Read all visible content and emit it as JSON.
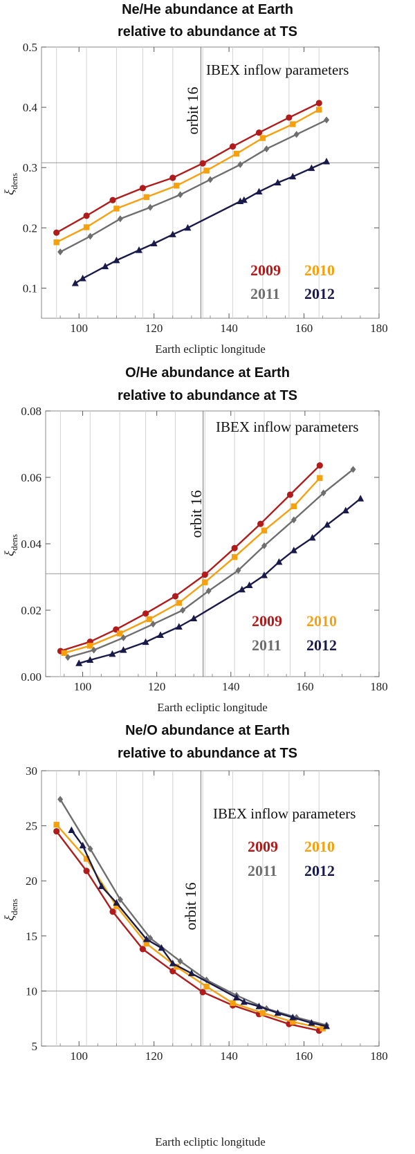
{
  "chart_data": [
    {
      "type": "line",
      "title_lines": [
        "Ne/He abundance at Earth",
        "relative to abundance at TS"
      ],
      "xlabel": "Earth ecliptic longitude",
      "ylabel_main": "ξ",
      "ylabel_sub": "dens",
      "xlim": [
        90,
        180
      ],
      "ylim": [
        0.05,
        0.5
      ],
      "x_ticks": [
        100,
        120,
        140,
        160,
        180
      ],
      "y_ticks": [
        0.1,
        0.2,
        0.3,
        0.4,
        0.5
      ],
      "y_tick_labels": [
        "0.1",
        "0.2",
        "0.3",
        "0.4",
        "0.5"
      ],
      "vgrid_x": [
        94,
        102,
        110,
        117,
        125,
        133,
        141,
        149,
        156,
        164
      ],
      "hline_y": 0.308,
      "orbit_x": 132.5,
      "orbit_label": "orbit 16",
      "annotation": "IBEX inflow parameters",
      "legend": [
        {
          "label": "2009",
          "color": "#b01c1c"
        },
        {
          "label": "2010",
          "color": "#f5a00f"
        },
        {
          "label": "2011",
          "color": "#6e6e6e"
        },
        {
          "label": "2012",
          "color": "#1a1a4a"
        }
      ],
      "series": [
        {
          "name": "2009",
          "color": "#b01c1c",
          "marker": "circle",
          "x": [
            94,
            102,
            109,
            117,
            125,
            133,
            141,
            148,
            156,
            164
          ],
          "y": [
            0.192,
            0.22,
            0.246,
            0.266,
            0.283,
            0.307,
            0.335,
            0.358,
            0.383,
            0.407
          ]
        },
        {
          "name": "2010",
          "color": "#f5a00f",
          "marker": "square",
          "x": [
            94,
            102,
            110,
            118,
            126,
            134,
            142,
            149,
            157,
            164
          ],
          "y": [
            0.176,
            0.201,
            0.232,
            0.251,
            0.27,
            0.295,
            0.323,
            0.349,
            0.372,
            0.396
          ]
        },
        {
          "name": "2011",
          "color": "#6e6e6e",
          "marker": "diamond",
          "x": [
            95,
            103,
            111,
            119,
            127,
            135,
            143,
            150,
            158,
            166
          ],
          "y": [
            0.16,
            0.186,
            0.215,
            0.234,
            0.255,
            0.28,
            0.305,
            0.331,
            0.355,
            0.379
          ]
        },
        {
          "name": "2012",
          "color": "#1a1a4a",
          "marker": "triangle",
          "x": [
            99,
            101,
            107,
            110,
            116,
            120,
            125,
            129,
            143,
            144,
            148,
            153,
            157,
            162,
            166
          ],
          "y": [
            0.108,
            0.116,
            0.136,
            0.146,
            0.163,
            0.174,
            0.189,
            0.2,
            0.244,
            0.246,
            0.26,
            0.275,
            0.285,
            0.299,
            0.31
          ]
        }
      ]
    },
    {
      "type": "line",
      "title_lines": [
        "O/He abundance at Earth",
        "relative to abundance at TS"
      ],
      "xlabel": "Earth ecliptic longitude",
      "ylabel_main": "ξ",
      "ylabel_sub": "dens",
      "xlim": [
        90,
        180
      ],
      "ylim": [
        0,
        0.08
      ],
      "x_ticks": [
        100,
        120,
        140,
        160,
        180
      ],
      "y_ticks": [
        0,
        0.02,
        0.04,
        0.06,
        0.08
      ],
      "y_tick_labels": [
        "0.00",
        "0.02",
        "0.04",
        "0.06",
        "0.08"
      ],
      "vgrid_x": [
        94,
        102,
        110,
        117,
        125,
        133,
        141,
        149,
        156,
        164
      ],
      "hline_y": 0.031,
      "orbit_x": 132.5,
      "orbit_label": "orbit 16",
      "annotation": "IBEX inflow parameters",
      "legend": [
        {
          "label": "2009",
          "color": "#b01c1c"
        },
        {
          "label": "2010",
          "color": "#f5a00f"
        },
        {
          "label": "2011",
          "color": "#6e6e6e"
        },
        {
          "label": "2012",
          "color": "#1a1a4a"
        }
      ],
      "series": [
        {
          "name": "2009",
          "color": "#b01c1c",
          "marker": "circle",
          "x": [
            94,
            102,
            109,
            117,
            125,
            133,
            141,
            148,
            156,
            164
          ],
          "y": [
            0.0077,
            0.0105,
            0.0142,
            0.019,
            0.0242,
            0.0307,
            0.0387,
            0.046,
            0.0548,
            0.0636
          ]
        },
        {
          "name": "2010",
          "color": "#f5a00f",
          "marker": "square",
          "x": [
            95,
            102,
            110,
            118,
            126,
            133,
            141,
            149,
            157,
            164
          ],
          "y": [
            0.0071,
            0.0093,
            0.013,
            0.0173,
            0.0222,
            0.0284,
            0.036,
            0.044,
            0.0513,
            0.0598
          ]
        },
        {
          "name": "2011",
          "color": "#6e6e6e",
          "marker": "diamond",
          "x": [
            96,
            103,
            111,
            119,
            127,
            134,
            142,
            149,
            157,
            165,
            173
          ],
          "y": [
            0.0058,
            0.008,
            0.0117,
            0.0158,
            0.02,
            0.0258,
            0.032,
            0.0394,
            0.0472,
            0.0553,
            0.0624
          ]
        },
        {
          "name": "2012",
          "color": "#1a1a4a",
          "marker": "triangle",
          "x": [
            99,
            102,
            108,
            111,
            117,
            121,
            126,
            130,
            143,
            145,
            149,
            153,
            157,
            162,
            166,
            171,
            175
          ],
          "y": [
            0.004,
            0.005,
            0.0068,
            0.008,
            0.0104,
            0.0125,
            0.015,
            0.0175,
            0.0262,
            0.0275,
            0.0305,
            0.0345,
            0.038,
            0.0418,
            0.0457,
            0.05,
            0.0536
          ]
        }
      ]
    },
    {
      "type": "line",
      "title_lines": [
        "Ne/O abundance at Earth",
        "relative to abundance at TS"
      ],
      "xlabel": "Earth ecliptic longitude",
      "ylabel_main": "ξ",
      "ylabel_sub": "dens",
      "xlim": [
        90,
        180
      ],
      "ylim": [
        5,
        30
      ],
      "x_ticks": [
        100,
        120,
        140,
        160,
        180
      ],
      "y_ticks": [
        5,
        10,
        15,
        20,
        25,
        30
      ],
      "y_tick_labels": [
        "5",
        "10",
        "15",
        "20",
        "25",
        "30"
      ],
      "vgrid_x": [
        94,
        102,
        110,
        117,
        125,
        133,
        141,
        149,
        156,
        164
      ],
      "hline_y": 10,
      "orbit_x": 132.5,
      "orbit_label": "orbit 16",
      "annotation": "IBEX inflow parameters",
      "legend": [
        {
          "label": "2009",
          "color": "#b01c1c"
        },
        {
          "label": "2010",
          "color": "#f5a00f"
        },
        {
          "label": "2011",
          "color": "#6e6e6e"
        },
        {
          "label": "2012",
          "color": "#1a1a4a"
        }
      ],
      "series": [
        {
          "name": "2009",
          "color": "#b01c1c",
          "marker": "circle",
          "x": [
            94,
            102,
            109,
            117,
            125,
            133,
            141,
            148,
            156,
            164
          ],
          "y": [
            24.5,
            20.9,
            17.2,
            13.8,
            11.8,
            9.9,
            8.7,
            7.9,
            7.0,
            6.4
          ]
        },
        {
          "name": "2010",
          "color": "#f5a00f",
          "marker": "square",
          "x": [
            94,
            102,
            110,
            118,
            126,
            134,
            141,
            149,
            157,
            165
          ],
          "y": [
            25.1,
            22.0,
            17.7,
            14.3,
            12.2,
            10.4,
            8.9,
            8.0,
            7.2,
            6.6
          ]
        },
        {
          "name": "2011",
          "color": "#6e6e6e",
          "marker": "diamond",
          "x": [
            95,
            103,
            111,
            119,
            127,
            134,
            142,
            150,
            158,
            166
          ],
          "y": [
            27.4,
            22.9,
            18.3,
            14.8,
            12.7,
            11.0,
            9.6,
            8.4,
            7.6,
            6.9
          ]
        },
        {
          "name": "2012",
          "color": "#1a1a4a",
          "marker": "triangle",
          "x": [
            98,
            101,
            106,
            110,
            118,
            122,
            125,
            130,
            142,
            144,
            148,
            153,
            157,
            162,
            166
          ],
          "y": [
            24.6,
            23.2,
            19.5,
            18.0,
            14.7,
            13.9,
            12.5,
            11.6,
            9.4,
            9.0,
            8.6,
            8.0,
            7.6,
            7.1,
            6.8
          ]
        }
      ]
    }
  ]
}
